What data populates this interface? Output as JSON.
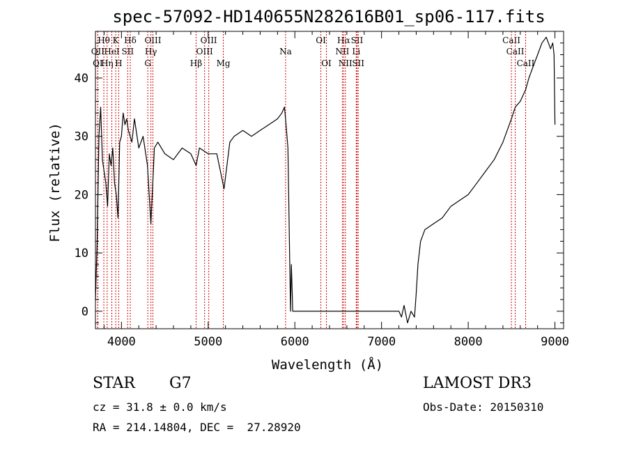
{
  "chart_data": {
    "type": "line",
    "title": "spec-57092-HD140655N282616B01_sp06-117.fits",
    "xlabel": "Wavelength (Å)",
    "ylabel": "Flux (relative)",
    "xlim": [
      3700,
      9100
    ],
    "ylim": [
      -3,
      48
    ],
    "xticks": [
      4000,
      5000,
      6000,
      7000,
      8000,
      9000
    ],
    "yticks": [
      0,
      10,
      20,
      30,
      40
    ],
    "xtick_labels": [
      "4000",
      "5000",
      "6000",
      "7000",
      "8000",
      "9000"
    ],
    "ytick_labels": [
      "0",
      "10",
      "20",
      "30",
      "40"
    ],
    "grid": false,
    "series": [
      {
        "name": "spectrum",
        "x": [
          3700,
          3720,
          3740,
          3760,
          3780,
          3800,
          3820,
          3840,
          3860,
          3880,
          3900,
          3920,
          3940,
          3960,
          3980,
          4000,
          4020,
          4040,
          4060,
          4080,
          4100,
          4120,
          4150,
          4200,
          4250,
          4300,
          4340,
          4380,
          4420,
          4500,
          4600,
          4700,
          4800,
          4861,
          4900,
          5000,
          5100,
          5183,
          5250,
          5300,
          5400,
          5500,
          5600,
          5700,
          5800,
          5850,
          5880,
          5893,
          5920,
          5950,
          5960,
          5970,
          5975,
          5980,
          5990,
          6000,
          6200,
          6400,
          6600,
          6800,
          7000,
          7100,
          7200,
          7230,
          7260,
          7300,
          7340,
          7380,
          7400,
          7420,
          7450,
          7500,
          7600,
          7700,
          7800,
          7900,
          8000,
          8100,
          8200,
          8300,
          8400,
          8498,
          8542,
          8600,
          8662,
          8700,
          8750,
          8800,
          8850,
          8900,
          8950,
          8975,
          8990,
          9000
        ],
        "values": [
          2,
          12,
          30,
          35,
          26,
          24,
          22,
          18,
          27,
          25,
          28,
          22,
          20,
          16,
          29,
          30,
          34,
          32,
          33,
          31,
          30,
          29,
          33,
          28,
          30,
          25,
          15,
          28,
          29,
          27,
          26,
          28,
          27,
          25,
          28,
          27,
          27,
          21,
          29,
          30,
          31,
          30,
          31,
          32,
          33,
          34,
          35,
          33,
          28,
          0,
          8,
          3,
          0,
          0,
          0,
          0,
          0,
          0,
          0,
          0,
          0,
          0,
          0,
          -1,
          1,
          -2,
          0,
          -1,
          3,
          8,
          12,
          14,
          15,
          16,
          18,
          19,
          20,
          22,
          24,
          26,
          29,
          33,
          35,
          36,
          38,
          40,
          42,
          44,
          46,
          47,
          45,
          46,
          44,
          32
        ]
      }
    ],
    "line_markers": [
      {
        "label": "Hθ",
        "x": 3797,
        "row": 1
      },
      {
        "label": "K",
        "x": 3934,
        "row": 1
      },
      {
        "label": "Hδ",
        "x": 4102,
        "row": 1
      },
      {
        "label": "OIII",
        "x": 4363,
        "row": 1
      },
      {
        "label": "OIII",
        "x": 5007,
        "row": 1
      },
      {
        "label": "OI",
        "x": 6300,
        "row": 1
      },
      {
        "label": "Hα",
        "x": 6563,
        "row": 1
      },
      {
        "label": "SII",
        "x": 6717,
        "row": 1
      },
      {
        "label": "CaII",
        "x": 8498,
        "row": 1
      },
      {
        "label": "OII",
        "x": 3727,
        "row": 2
      },
      {
        "label": "HeI",
        "x": 3889,
        "row": 2
      },
      {
        "label": "SII",
        "x": 4072,
        "row": 2
      },
      {
        "label": "Hγ",
        "x": 4340,
        "row": 2
      },
      {
        "label": "OIII",
        "x": 4959,
        "row": 2
      },
      {
        "label": "Na",
        "x": 5893,
        "row": 2
      },
      {
        "label": "NII",
        "x": 6548,
        "row": 2
      },
      {
        "label": "Li",
        "x": 6708,
        "row": 2
      },
      {
        "label": "CaII",
        "x": 8542,
        "row": 2
      },
      {
        "label": "OI",
        "x": 3727,
        "row": 3
      },
      {
        "label": "Hη",
        "x": 3835,
        "row": 3
      },
      {
        "label": "H",
        "x": 3968,
        "row": 3
      },
      {
        "label": "G",
        "x": 4304,
        "row": 3
      },
      {
        "label": "Hβ",
        "x": 4861,
        "row": 3
      },
      {
        "label": "Mg",
        "x": 5175,
        "row": 3
      },
      {
        "label": "OI",
        "x": 6364,
        "row": 3
      },
      {
        "label": "NII",
        "x": 6583,
        "row": 3
      },
      {
        "label": "SII",
        "x": 6731,
        "row": 3
      },
      {
        "label": "CaII",
        "x": 8662,
        "row": 3
      }
    ]
  },
  "info": {
    "object_class": "STAR",
    "subclass": "G7",
    "survey": "LAMOST DR3",
    "cz": "cz = 31.8 ± 0.0 km/s",
    "obs_date": "Obs-Date: 20150310",
    "coords": "RA = 214.14804, DEC =  27.28920"
  },
  "colors": {
    "spectrum": "#000000",
    "marker_line": "#cc0000",
    "axis": "#000000"
  }
}
